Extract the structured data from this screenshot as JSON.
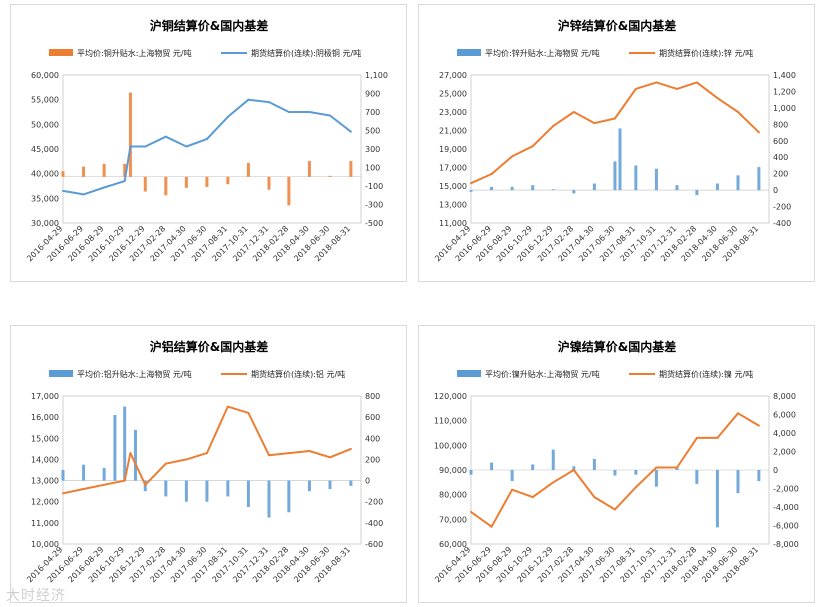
{
  "watermark": "大时经济",
  "charts": [
    {
      "title": "沪铜结算价&国内基差",
      "legend": [
        "平均价:铜升贴水:上海物贸 元/吨",
        "期货结算价(连续):阴极铜 元/吨"
      ],
      "left_ticks": [
        "60,000",
        "55,000",
        "50,000",
        "45,000",
        "40,000",
        "35,000",
        "30,000"
      ],
      "right_ticks": [
        "1,100",
        "900",
        "700",
        "500",
        "300",
        "100",
        "-100",
        "-300",
        "-500"
      ],
      "x_ticks": [
        "2016-04-29",
        "2016-06-29",
        "2016-08-29",
        "2016-10-29",
        "2016-12-29",
        "2017-02-28",
        "2017-04-30",
        "2017-06-30",
        "2017-08-31",
        "2017-10-31",
        "2017-12-31",
        "2018-02-28",
        "2018-04-30",
        "2018-06-30",
        "2018-08-31"
      ]
    },
    {
      "title": "沪锌结算价&国内基差",
      "legend": [
        "平均价:锌升贴水:上海物贸 元/吨",
        "期货结算价(连续):锌 元/吨"
      ],
      "left_ticks": [
        "27,000",
        "25,000",
        "23,000",
        "21,000",
        "19,000",
        "17,000",
        "15,000",
        "13,000",
        "11,000"
      ],
      "right_ticks": [
        "1,400",
        "1,200",
        "1,000",
        "800",
        "600",
        "400",
        "200",
        "0",
        "-200",
        "-400"
      ],
      "x_ticks": [
        "2016-04-29",
        "2016-06-29",
        "2016-08-29",
        "2016-10-29",
        "2016-12-29",
        "2017-02-28",
        "2017-04-30",
        "2017-06-30",
        "2017-08-31",
        "2017-10-31",
        "2017-12-31",
        "2018-02-28",
        "2018-04-30",
        "2018-06-30",
        "2018-08-31"
      ]
    },
    {
      "title": "沪铝结算价&国内基差",
      "legend": [
        "平均价:铝升贴水:上海物贸 元/吨",
        "期货结算价(连续):铝 元/吨"
      ],
      "left_ticks": [
        "17,000",
        "16,000",
        "15,000",
        "14,000",
        "13,000",
        "12,000",
        "11,000",
        "10,000"
      ],
      "right_ticks": [
        "800",
        "600",
        "400",
        "200",
        "0",
        "-200",
        "-400",
        "-600"
      ],
      "x_ticks": [
        "2016-04-29",
        "2016-06-29",
        "2016-08-29",
        "2016-10-29",
        "2016-12-29",
        "2017-02-28",
        "2017-04-30",
        "2017-06-30",
        "2017-08-31",
        "2017-10-31",
        "2017-12-31",
        "2018-02-28",
        "2018-04-30",
        "2018-06-30",
        "2018-08-31"
      ]
    },
    {
      "title": "沪镍结算价&国内基差",
      "legend": [
        "平均价:镍升贴水:上海物贸 元/吨",
        "期货结算价(连续):镍 元/吨"
      ],
      "left_ticks": [
        "120,000",
        "110,000",
        "100,000",
        "90,000",
        "80,000",
        "70,000",
        "60,000"
      ],
      "right_ticks": [
        "8,000",
        "6,000",
        "4,000",
        "2,000",
        "0",
        "-2,000",
        "-4,000",
        "-6,000",
        "-8,000"
      ],
      "x_ticks": [
        "2016-04-29",
        "2016-06-29",
        "2016-08-29",
        "2016-10-29",
        "2016-12-29",
        "2017-02-28",
        "2017-04-30",
        "2017-06-30",
        "2017-08-31",
        "2017-10-31",
        "2017-12-31",
        "2018-02-28",
        "2018-04-30",
        "2018-06-30",
        "2018-08-31"
      ]
    }
  ],
  "chart_data": [
    {
      "type": "bar+line",
      "title": "沪铜结算价&国内基差",
      "x_range": [
        "2016-04-29",
        "2018-09-30"
      ],
      "ylim_left": [
        30000,
        60000
      ],
      "ylim_right": [
        -500,
        1100
      ],
      "series": [
        {
          "name": "平均价:铜升贴水:上海物贸 元/吨",
          "type": "bar",
          "axis": "right",
          "color": "#ED7D31",
          "x": [
            "2016-04-29",
            "2016-06-29",
            "2016-08-29",
            "2016-10-29",
            "2016-11-15",
            "2016-12-29",
            "2017-02-28",
            "2017-04-30",
            "2017-06-30",
            "2017-08-31",
            "2017-10-31",
            "2017-12-31",
            "2018-02-28",
            "2018-04-30",
            "2018-06-30",
            "2018-08-31"
          ],
          "values": [
            60,
            110,
            140,
            140,
            910,
            -160,
            -200,
            -120,
            -110,
            -80,
            150,
            -140,
            -310,
            170,
            10,
            170
          ]
        },
        {
          "name": "期货结算价(连续):阴极铜 元/吨",
          "type": "line",
          "axis": "left",
          "color": "#5B9BD5",
          "x": [
            "2016-04-29",
            "2016-06-29",
            "2016-08-29",
            "2016-10-29",
            "2016-11-15",
            "2016-12-29",
            "2017-02-28",
            "2017-04-30",
            "2017-06-30",
            "2017-08-31",
            "2017-10-31",
            "2017-12-31",
            "2018-02-28",
            "2018-04-30",
            "2018-06-30",
            "2018-08-31"
          ],
          "values": [
            36500,
            35800,
            37200,
            38500,
            45500,
            45500,
            47500,
            45500,
            47000,
            51500,
            55000,
            54500,
            52500,
            52500,
            51800,
            48500
          ]
        }
      ]
    },
    {
      "type": "bar+line",
      "title": "沪锌结算价&国内基差",
      "x_range": [
        "2016-04-29",
        "2018-09-30"
      ],
      "ylim_left": [
        11000,
        27000
      ],
      "ylim_right": [
        -400,
        1400
      ],
      "series": [
        {
          "name": "平均价:锌升贴水:上海物贸 元/吨",
          "type": "bar",
          "axis": "right",
          "color": "#5B9BD5",
          "x": [
            "2016-04-29",
            "2016-06-29",
            "2016-08-29",
            "2016-10-29",
            "2016-12-29",
            "2017-02-28",
            "2017-04-30",
            "2017-06-30",
            "2017-07-15",
            "2017-08-31",
            "2017-10-31",
            "2017-12-31",
            "2018-02-28",
            "2018-04-30",
            "2018-06-30",
            "2018-08-31"
          ],
          "values": [
            -20,
            40,
            40,
            60,
            10,
            -40,
            80,
            350,
            750,
            300,
            260,
            60,
            -60,
            80,
            180,
            280
          ]
        },
        {
          "name": "期货结算价(连续):锌 元/吨",
          "type": "line",
          "axis": "left",
          "color": "#ED7D31",
          "x": [
            "2016-04-29",
            "2016-06-29",
            "2016-08-29",
            "2016-10-29",
            "2016-12-29",
            "2017-02-28",
            "2017-04-30",
            "2017-06-30",
            "2017-08-31",
            "2017-10-31",
            "2017-12-31",
            "2018-02-28",
            "2018-04-30",
            "2018-06-30",
            "2018-08-31"
          ],
          "values": [
            15300,
            16300,
            18200,
            19300,
            21500,
            23000,
            21800,
            22300,
            25500,
            26200,
            25500,
            26200,
            24500,
            23000,
            20800
          ]
        }
      ]
    },
    {
      "type": "bar+line",
      "title": "沪铝结算价&国内基差",
      "x_range": [
        "2016-04-29",
        "2018-09-30"
      ],
      "ylim_left": [
        10000,
        17000
      ],
      "ylim_right": [
        -600,
        800
      ],
      "series": [
        {
          "name": "平均价:铝升贴水:上海物贸 元/吨",
          "type": "bar",
          "axis": "right",
          "color": "#5B9BD5",
          "x": [
            "2016-04-29",
            "2016-06-29",
            "2016-08-29",
            "2016-09-30",
            "2016-10-29",
            "2016-11-30",
            "2016-12-29",
            "2017-02-28",
            "2017-04-30",
            "2017-06-30",
            "2017-08-31",
            "2017-10-31",
            "2017-12-31",
            "2018-02-28",
            "2018-04-30",
            "2018-06-30",
            "2018-08-31"
          ],
          "values": [
            100,
            150,
            120,
            620,
            700,
            480,
            -100,
            -150,
            -200,
            -200,
            -150,
            -250,
            -350,
            -300,
            -100,
            -80,
            -50
          ]
        },
        {
          "name": "期货结算价(连续):铝 元/吨",
          "type": "line",
          "axis": "left",
          "color": "#ED7D31",
          "x": [
            "2016-04-29",
            "2016-06-29",
            "2016-08-29",
            "2016-10-29",
            "2016-11-15",
            "2016-12-29",
            "2017-02-28",
            "2017-04-30",
            "2017-06-30",
            "2017-08-31",
            "2017-10-31",
            "2017-12-31",
            "2018-02-28",
            "2018-04-30",
            "2018-06-30",
            "2018-08-31"
          ],
          "values": [
            12400,
            12600,
            12800,
            13000,
            14300,
            12800,
            13800,
            14000,
            14300,
            16500,
            16200,
            14200,
            14300,
            14400,
            14100,
            14500
          ]
        }
      ]
    },
    {
      "type": "bar+line",
      "title": "沪镍结算价&国内基差",
      "x_range": [
        "2016-04-29",
        "2018-09-30"
      ],
      "ylim_left": [
        60000,
        120000
      ],
      "ylim_right": [
        -8000,
        8000
      ],
      "series": [
        {
          "name": "平均价:镍升贴水:上海物贸 元/吨",
          "type": "bar",
          "axis": "right",
          "color": "#5B9BD5",
          "x": [
            "2016-04-29",
            "2016-06-29",
            "2016-08-29",
            "2016-10-29",
            "2016-12-29",
            "2017-02-28",
            "2017-04-30",
            "2017-06-30",
            "2017-08-31",
            "2017-10-31",
            "2017-12-31",
            "2018-02-28",
            "2018-04-30",
            "2018-06-30",
            "2018-08-31"
          ],
          "values": [
            -500,
            800,
            -1200,
            600,
            2200,
            400,
            1200,
            -600,
            -500,
            -1800,
            300,
            -1500,
            -6200,
            -2500,
            -1200
          ]
        },
        {
          "name": "期货结算价(连续):镍 元/吨",
          "type": "line",
          "axis": "left",
          "color": "#ED7D31",
          "x": [
            "2016-04-29",
            "2016-06-29",
            "2016-08-29",
            "2016-10-29",
            "2016-12-29",
            "2017-02-28",
            "2017-04-30",
            "2017-06-30",
            "2017-08-31",
            "2017-10-31",
            "2017-12-31",
            "2018-02-28",
            "2018-04-30",
            "2018-06-30",
            "2018-08-31"
          ],
          "values": [
            73000,
            67000,
            82000,
            79000,
            85000,
            90000,
            79000,
            74000,
            83000,
            91000,
            91000,
            103000,
            103000,
            113000,
            108000
          ]
        }
      ]
    }
  ]
}
